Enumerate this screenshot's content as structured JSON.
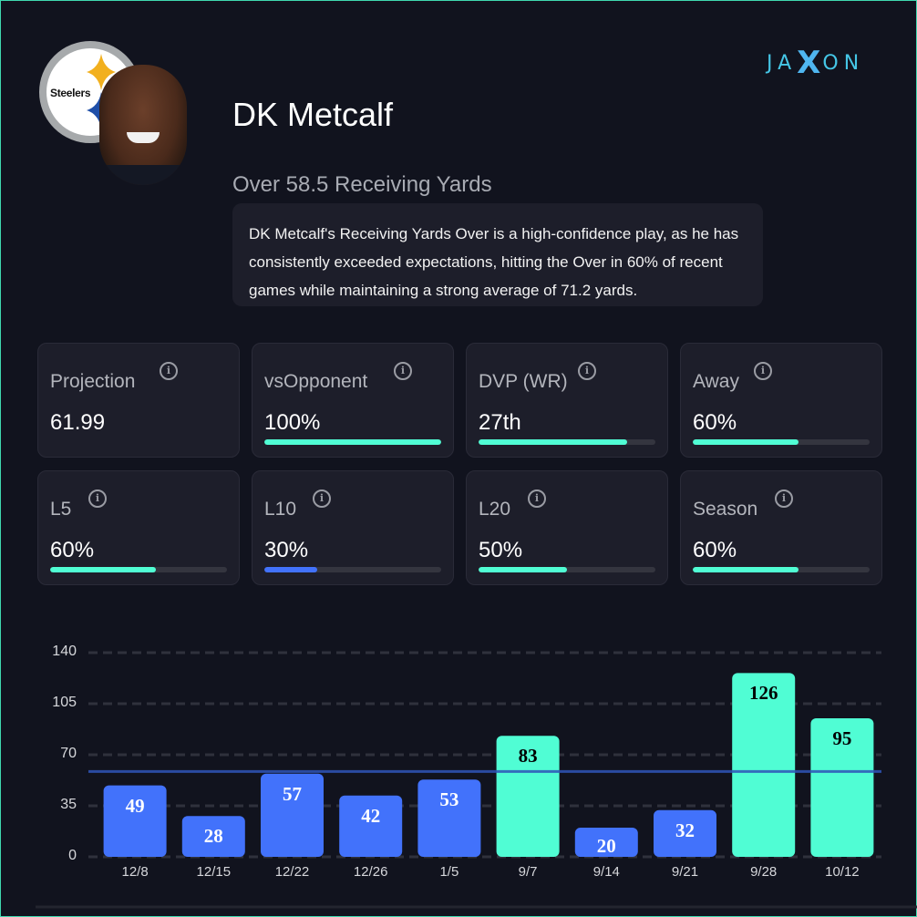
{
  "brand": {
    "logo_text_left": "JA",
    "logo_text_x": "X",
    "logo_text_right": "ON"
  },
  "team": {
    "name": "Steelers",
    "logo_icon": "steelers-logo",
    "colors": {
      "yellow": "#f2b01e",
      "red": "#c8102e",
      "blue": "#1f4fa8",
      "ring": "#a6a9ab"
    }
  },
  "player": {
    "name": "DK Metcalf",
    "headshot_icon": "player-headshot"
  },
  "prop": {
    "line": "Over 58.5 Receiving Yards"
  },
  "summary": {
    "text": "DK Metcalf's Receiving Yards Over is a high-confidence play, as he has consistently exceeded expectations, hitting the Over in 60% of recent games while maintaining a strong average of 71.2 yards."
  },
  "colors": {
    "hit": "#50fdd4",
    "miss": "#4272fb",
    "line": "#2f55b8",
    "background": "#11131e",
    "card": "#1d1e2a"
  },
  "stats": [
    {
      "label": "Projection",
      "value": "61.99",
      "progress": null,
      "status": "none"
    },
    {
      "label": "vsOpponent",
      "value": "100%",
      "progress": 1.0,
      "status": "hit"
    },
    {
      "label": "DVP (WR)",
      "value": "27th",
      "progress": 0.84,
      "status": "hit"
    },
    {
      "label": "Away",
      "value": "60%",
      "progress": 0.6,
      "status": "hit"
    },
    {
      "label": "L5",
      "value": "60%",
      "progress": 0.6,
      "status": "hit"
    },
    {
      "label": "L10",
      "value": "30%",
      "progress": 0.3,
      "status": "miss"
    },
    {
      "label": "L20",
      "value": "50%",
      "progress": 0.5,
      "status": "hit"
    },
    {
      "label": "Season",
      "value": "60%",
      "progress": 0.6,
      "status": "hit"
    }
  ],
  "chart_data": {
    "type": "bar",
    "title": "",
    "xlabel": "",
    "ylabel": "",
    "categories": [
      "12/8",
      "12/15",
      "12/22",
      "12/26",
      "1/5",
      "9/7",
      "9/14",
      "9/21",
      "9/28",
      "10/12"
    ],
    "values": [
      49,
      28,
      57,
      42,
      53,
      83,
      20,
      32,
      126,
      95
    ],
    "status": [
      "miss",
      "miss",
      "miss",
      "miss",
      "miss",
      "hit",
      "miss",
      "miss",
      "hit",
      "hit"
    ],
    "yticks": [
      0,
      35,
      70,
      105,
      140
    ],
    "ylim": [
      0,
      140
    ],
    "reference_line": 58.5,
    "grid": true,
    "legend": "none"
  }
}
